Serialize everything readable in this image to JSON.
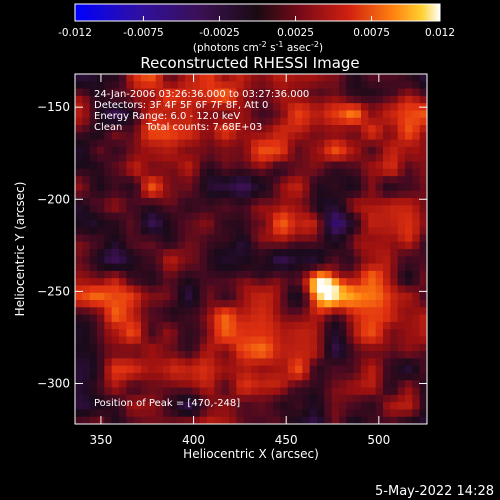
{
  "chart_data": {
    "type": "heatmap",
    "title": "Reconstructed RHESSI Image",
    "xlabel": "Heliocentric X (arcsec)",
    "ylabel": "Heliocentric Y (arcsec)",
    "xlim": [
      336,
      526
    ],
    "ylim": [
      -322,
      -132
    ],
    "x_ticks": [
      350,
      400,
      450,
      500
    ],
    "y_ticks": [
      -150,
      -200,
      -250,
      -300
    ],
    "colorbar": {
      "min": -0.012,
      "max": 0.012,
      "ticks": [
        "-0.012",
        "-0.0075",
        "-0.0025",
        "0.0025",
        "0.0075",
        "0.012"
      ],
      "label_parts": [
        "(photons cm",
        "-2",
        " s",
        "-1",
        " asec",
        "-2",
        ")"
      ],
      "colormap": [
        "#0000ff",
        "#2a0a8c",
        "#3a1050",
        "#1a0a1a",
        "#4a0a20",
        "#9a1010",
        "#e03010",
        "#ff8010",
        "#ffd030",
        "#ffffff"
      ]
    },
    "annotations": [
      "24-Jan-2006 03:26:36.000 to 03:27:36.000",
      "Detectors: 3F 4F 5F 6F 7F 8F, Att 0",
      "Energy Range: 6.0 - 12.0 keV",
      "Clean",
      "Total counts: 7.68E+03"
    ],
    "peak_label": "Position of Peak = [470,-248]",
    "peak": {
      "x": 470,
      "y": -248,
      "value": 0.012
    }
  },
  "footer": {
    "date": "5-May-2022 14:28"
  }
}
